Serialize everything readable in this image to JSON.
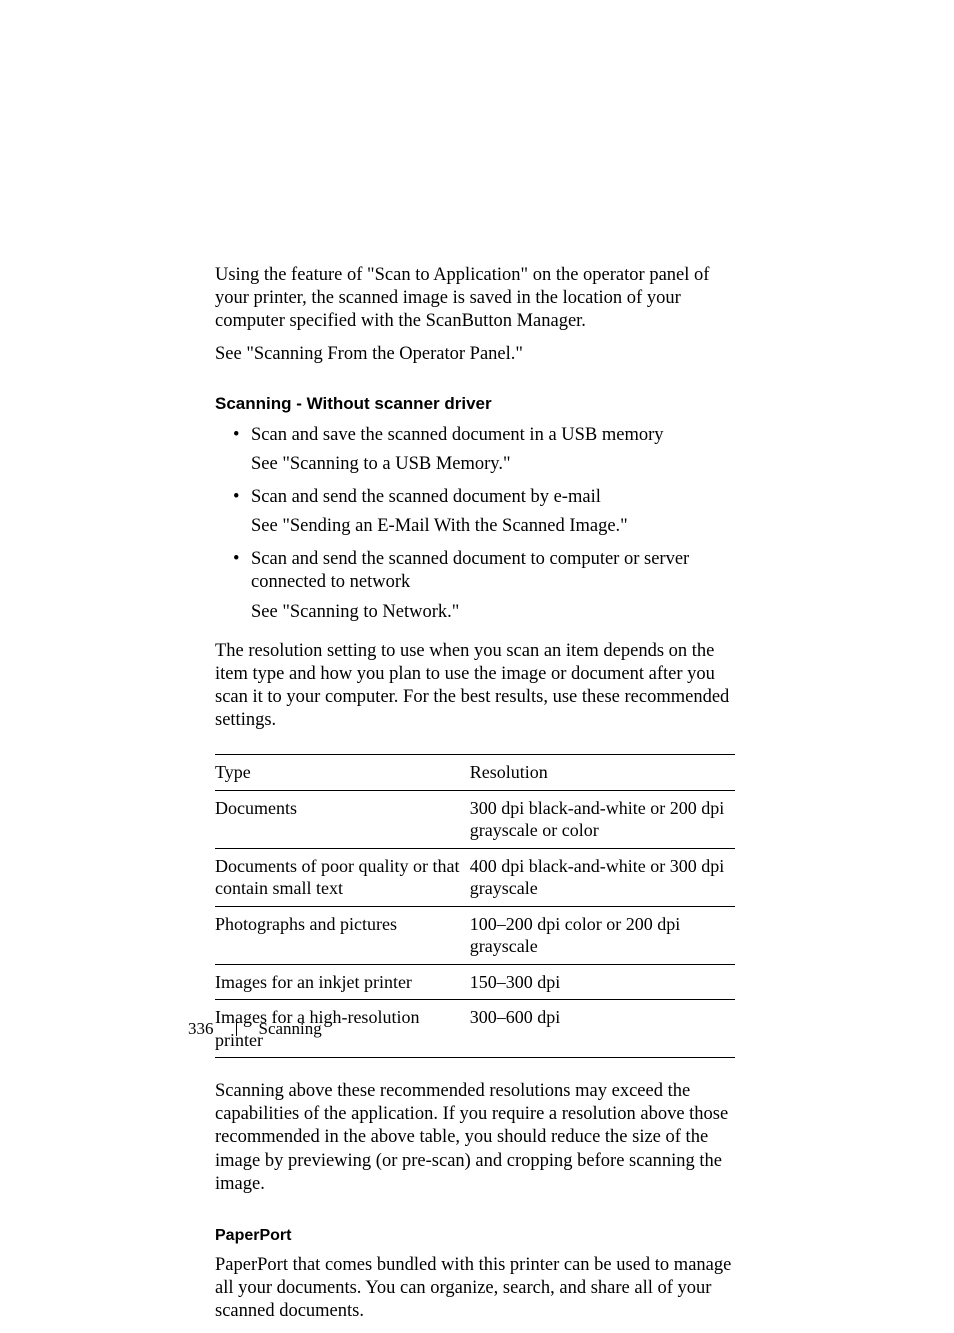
{
  "intro": {
    "p1": "Using the feature of \"Scan to Application\" on the operator panel of your printer, the scanned image is saved in the location of your computer specified with the ScanButton Manager.",
    "p2": "See \"Scanning From the Operator Panel.\""
  },
  "heading_no_driver": "Scanning - Without scanner driver",
  "bullets": [
    {
      "line": "Scan and save the scanned document in a USB memory",
      "see": "See \"Scanning to a USB Memory.\""
    },
    {
      "line": "Scan and send the scanned document by e-mail",
      "see": "See \"Sending an E-Mail With the Scanned Image.\""
    },
    {
      "line": "Scan and send the scanned document to computer or server connected to network",
      "see": "See \"Scanning to Network.\""
    }
  ],
  "resolution_intro": "The resolution setting to use when you scan an item depends on the item type and how you plan to use the image or document after you scan it to your computer. For the best results, use these recommended settings.",
  "table": {
    "header_type": "Type",
    "header_resolution": "Resolution",
    "rows": [
      {
        "type": "Documents",
        "resolution": "300 dpi black-and-white or 200 dpi grayscale or color"
      },
      {
        "type": "Documents of poor quality or that contain small text",
        "resolution": "400 dpi black-and-white or 300 dpi grayscale"
      },
      {
        "type": "Photographs and pictures",
        "resolution": "100–200 dpi color or 200 dpi grayscale"
      },
      {
        "type": "Images for an inkjet printer",
        "resolution": "150–300 dpi"
      },
      {
        "type": "Images for a high-resolution printer",
        "resolution": "300–600 dpi"
      }
    ]
  },
  "after_table": "Scanning above these recommended resolutions may exceed the capabilities of the application. If you require a resolution above those recommended in the above table, you should reduce the size of the image by previewing (or pre-scan) and cropping before scanning the image.",
  "paperport": {
    "heading": "PaperPort",
    "body": "PaperPort that comes bundled with this printer can be used to manage all your documents. You can organize, search, and share all of your scanned documents."
  },
  "footer": {
    "page_number": "336",
    "section": "Scanning"
  }
}
